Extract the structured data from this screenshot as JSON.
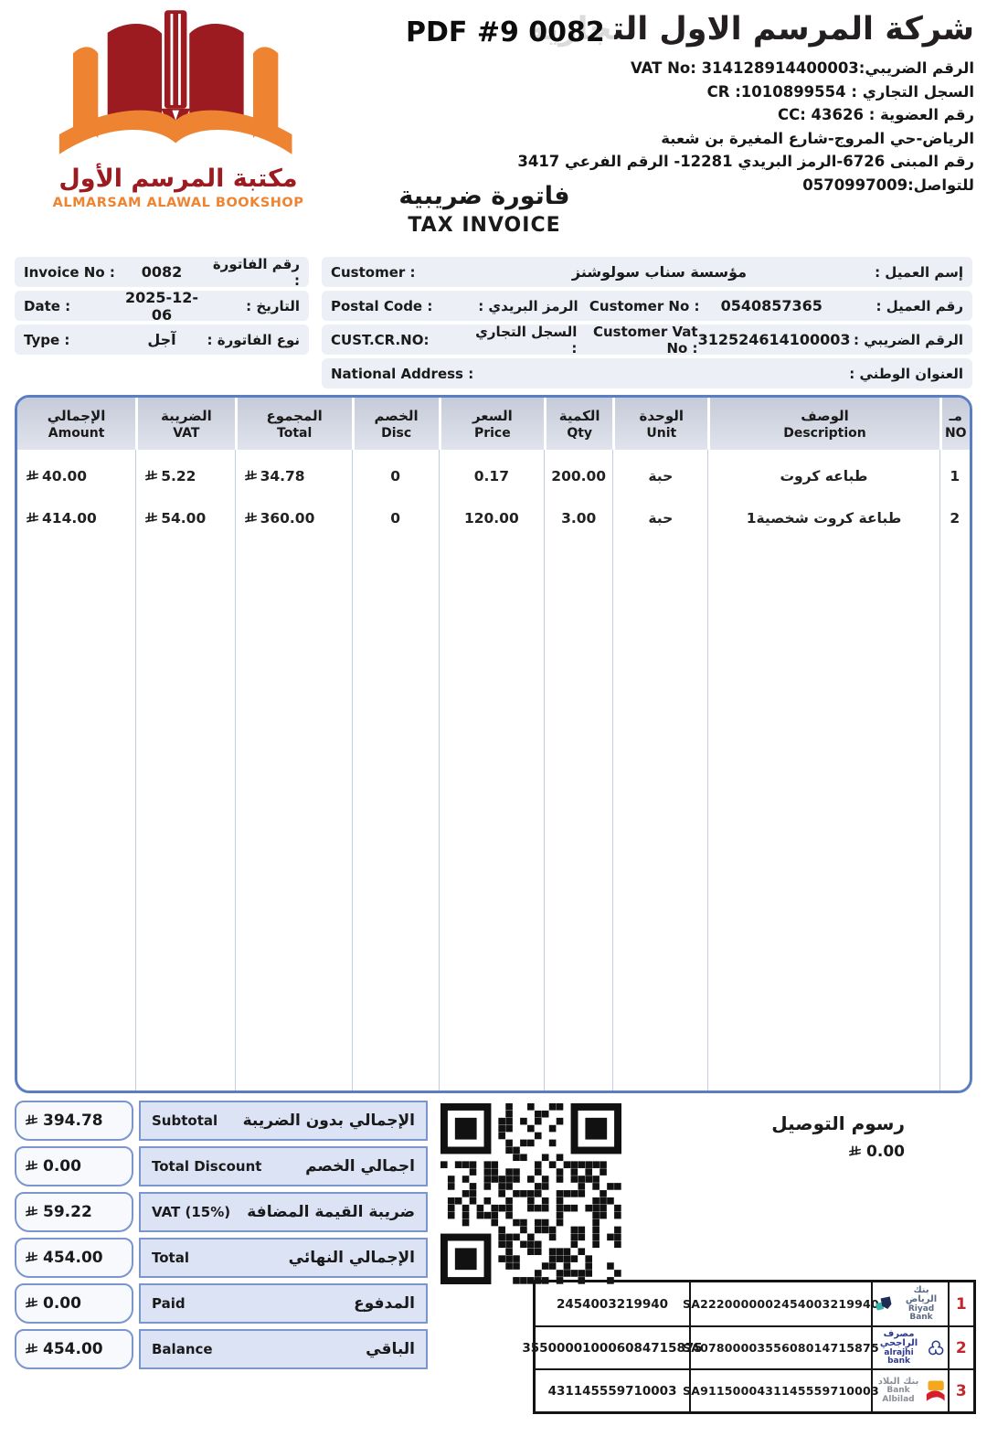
{
  "overlay": {
    "pdf_label": "PDF #9 0082"
  },
  "company": {
    "name_ar": "شركة المرسم الاول التجارية",
    "logo_title_ar": "مكتبة المرسم الأول",
    "logo_title_en": "ALMARSAM ALAWAL BOOKSHOP",
    "details": [
      "الرقم الضريبي:VAT No:  314128914400003",
      "السجل التجاري : CR :1010899554",
      "رقم العضوية : CC: 43626",
      "الرياض-حي المروج-شارع المغيرة بن شعبة",
      "رقم المبنى 6726-الرمز البريدي 12281- الرقم الفرعي 3417",
      "للتواصل:0570997009"
    ]
  },
  "invoice_title": {
    "ar": "فاتورة ضريبية",
    "en": "TAX INVOICE"
  },
  "meta": {
    "rows": [
      {
        "en": "Invoice No :",
        "value": "0082",
        "ar": "رقم الفاتورة :"
      },
      {
        "en": "Date :",
        "value": "2025-12-06",
        "ar": "التاريخ :"
      },
      {
        "en": "Type :",
        "value": "آجل",
        "ar": "نوع الفاتورة :"
      }
    ]
  },
  "customer": {
    "row1": {
      "en": "Customer :",
      "value": "مؤسسة سناب سولوشنز",
      "ar": "إسم العميل :"
    },
    "row2": {
      "en": "Postal Code :",
      "mid_ar": "الرمز البريدي :",
      "mid_en": "Customer No :",
      "value": "0540857365",
      "ar": "رقم العميل :"
    },
    "row3": {
      "en": "CUST.CR.NO:",
      "mid_ar": "السجل التجاري :",
      "mid_en": "Customer Vat No :",
      "value": "312524614100003",
      "ar": "الرقم الضريبي :"
    },
    "row4": {
      "en": "National Address :",
      "ar": "العنوان الوطني :"
    }
  },
  "table": {
    "headers": [
      {
        "ar": "الإجمالي",
        "en": "Amount"
      },
      {
        "ar": "الضريبة",
        "en": "VAT"
      },
      {
        "ar": "المجموع",
        "en": "Total"
      },
      {
        "ar": "الخصم",
        "en": "Disc"
      },
      {
        "ar": "السعر",
        "en": "Price"
      },
      {
        "ar": "الكمية",
        "en": "Qty"
      },
      {
        "ar": "الوحدة",
        "en": "Unit"
      },
      {
        "ar": "الوصف",
        "en": "Description"
      },
      {
        "ar": "مـ",
        "en": "NO"
      }
    ],
    "currency_icon": "saudi-riyal-symbol",
    "items": [
      {
        "no": "1",
        "desc": "طباعه كروت",
        "unit": "حبة",
        "qty": "200.00",
        "price": "0.17",
        "disc": "0",
        "total": "34.78",
        "vat": "5.22",
        "amount": "40.00"
      },
      {
        "no": "2",
        "desc": "طباعة كروت شخصية1",
        "unit": "حبة",
        "qty": "3.00",
        "price": "120.00",
        "disc": "0",
        "total": "360.00",
        "vat": "54.00",
        "amount": "414.00"
      }
    ]
  },
  "summary": {
    "rows": [
      {
        "en": "Subtotal",
        "ar": "الإجمالي بدون الضريبة",
        "value": "394.78"
      },
      {
        "en": "Total Discount",
        "ar": "اجمالي الخصم",
        "value": "0.00"
      },
      {
        "en": "VAT (15%)",
        "ar": "ضريبة القيمة المضافة",
        "value": "59.22"
      },
      {
        "en": "Total",
        "ar": "الإجمالي النهائي",
        "value": "454.00"
      },
      {
        "en": "Paid",
        "ar": "المدفوع",
        "value": "0.00"
      },
      {
        "en": "Balance",
        "ar": "الباقي",
        "value": "454.00"
      }
    ]
  },
  "delivery": {
    "label_ar": "رسوم التوصيل",
    "value": "0.00"
  },
  "banks": [
    {
      "num": "1",
      "account": "2454003219940",
      "iban": "SA2220000002454003219940",
      "name_ar": "بنك الرياض",
      "name_en": "Riyad Bank"
    },
    {
      "num": "2",
      "account": "355000010006084715875",
      "iban": "SA0780000355608014715875",
      "name_ar": "مصرف الراجحي",
      "name_en": "alrajhi bank"
    },
    {
      "num": "3",
      "account": "431145559710003",
      "iban": "SA9115000431145559710003",
      "name_ar": "بنك البلاد",
      "name_en": "Bank Albilad"
    }
  ]
}
